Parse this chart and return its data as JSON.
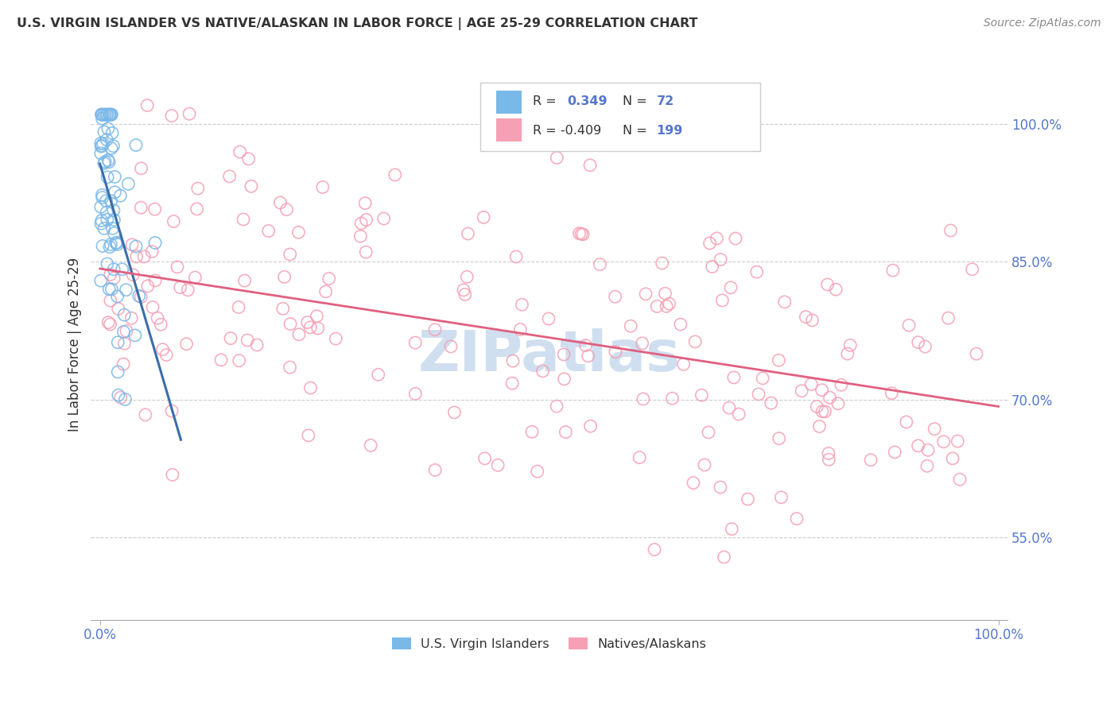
{
  "title": "U.S. VIRGIN ISLANDER VS NATIVE/ALASKAN IN LABOR FORCE | AGE 25-29 CORRELATION CHART",
  "source": "Source: ZipAtlas.com",
  "ylabel": "In Labor Force | Age 25-29",
  "y_tick_labels": [
    "55.0%",
    "70.0%",
    "85.0%",
    "100.0%"
  ],
  "y_tick_values": [
    0.55,
    0.7,
    0.85,
    1.0
  ],
  "blue_color": "#7ab8e8",
  "pink_color": "#f5a0b5",
  "trend_blue": "#3a6ea8",
  "trend_pink": "#e06080",
  "watermark_color": "#d0dff0",
  "bg_color": "#ffffff",
  "legend_box_color": "#f8f8f8",
  "legend_border_color": "#cccccc",
  "tick_color": "#5577cc",
  "text_color": "#333333",
  "grid_color": "#cccccc",
  "spine_color": "#aaaaaa",
  "r1_val": "0.349",
  "n1_val": "72",
  "r2_val": "-0.409",
  "n2_val": "199",
  "legend1_label": "U.S. Virgin Islanders",
  "legend2_label": "Natives/Alaskans"
}
